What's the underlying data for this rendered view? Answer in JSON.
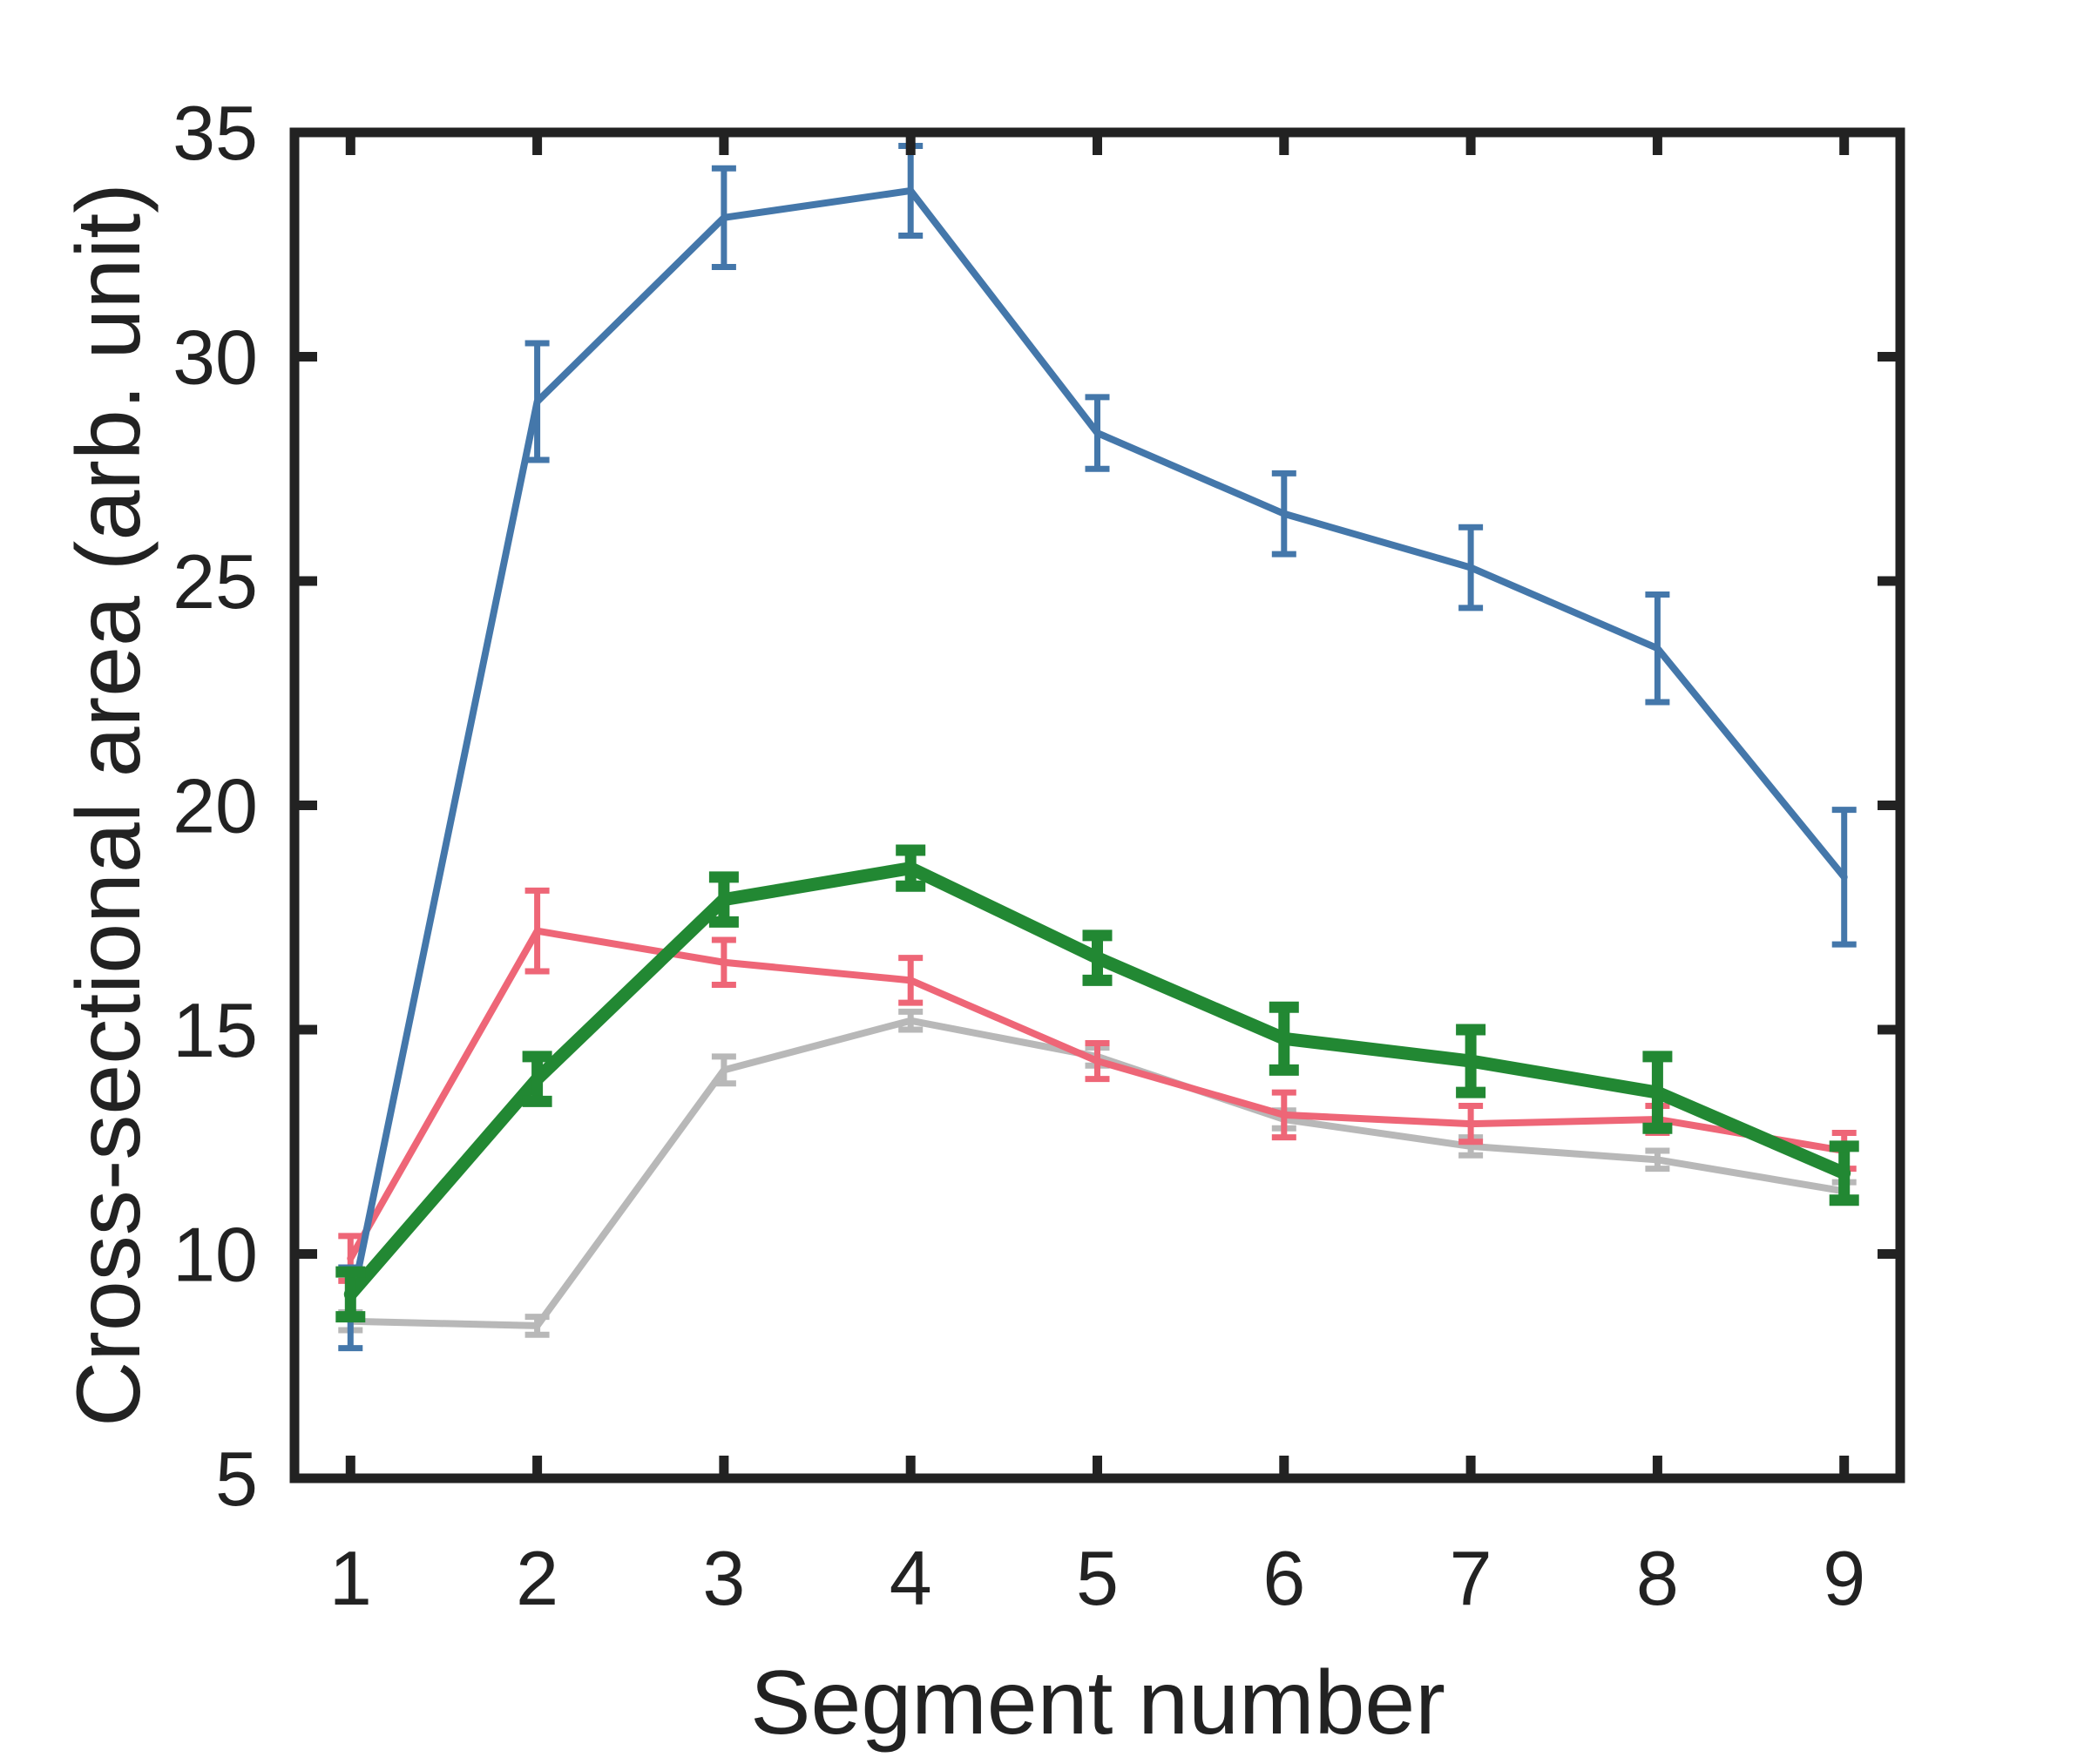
{
  "chart_data": {
    "type": "line",
    "title": "",
    "xlabel": "Segment number",
    "ylabel": "Cross-sectional area (arb. unit)",
    "x": [
      1,
      2,
      3,
      4,
      5,
      6,
      7,
      8,
      9
    ],
    "xlim": [
      0.7,
      9.3
    ],
    "ylim": [
      5,
      35
    ],
    "xticks": [
      1,
      2,
      3,
      4,
      5,
      6,
      7,
      8,
      9
    ],
    "yticks": [
      5,
      10,
      15,
      20,
      25,
      30,
      35
    ],
    "grid": false,
    "series": [
      {
        "color": "#b8b8b8",
        "values": [
          8.5,
          8.4,
          14.1,
          15.2,
          14.4,
          13.0,
          12.4,
          12.1,
          11.4
        ],
        "errors": [
          0.2,
          0.2,
          0.3,
          0.2,
          0.2,
          0.2,
          0.2,
          0.2,
          0.2
        ],
        "line_weight": "normal"
      },
      {
        "color": "#ee6677",
        "values": [
          9.9,
          17.2,
          16.5,
          16.1,
          14.3,
          13.1,
          12.9,
          13.0,
          12.3
        ],
        "errors": [
          0.5,
          0.9,
          0.5,
          0.5,
          0.4,
          0.5,
          0.4,
          0.3,
          0.4
        ],
        "line_weight": "normal"
      },
      {
        "color": "#4477aa",
        "values": [
          8.8,
          29.0,
          33.1,
          33.7,
          28.3,
          26.5,
          25.3,
          23.5,
          18.4
        ],
        "errors": [
          0.9,
          1.3,
          1.1,
          1.0,
          0.8,
          0.9,
          0.9,
          1.2,
          1.5
        ],
        "line_weight": "normal"
      },
      {
        "color": "#228833",
        "values": [
          9.1,
          13.9,
          17.9,
          18.6,
          16.6,
          14.8,
          14.3,
          13.6,
          11.8
        ],
        "errors": [
          0.5,
          0.5,
          0.5,
          0.4,
          0.5,
          0.7,
          0.7,
          0.8,
          0.6
        ],
        "line_weight": "bold"
      }
    ]
  }
}
